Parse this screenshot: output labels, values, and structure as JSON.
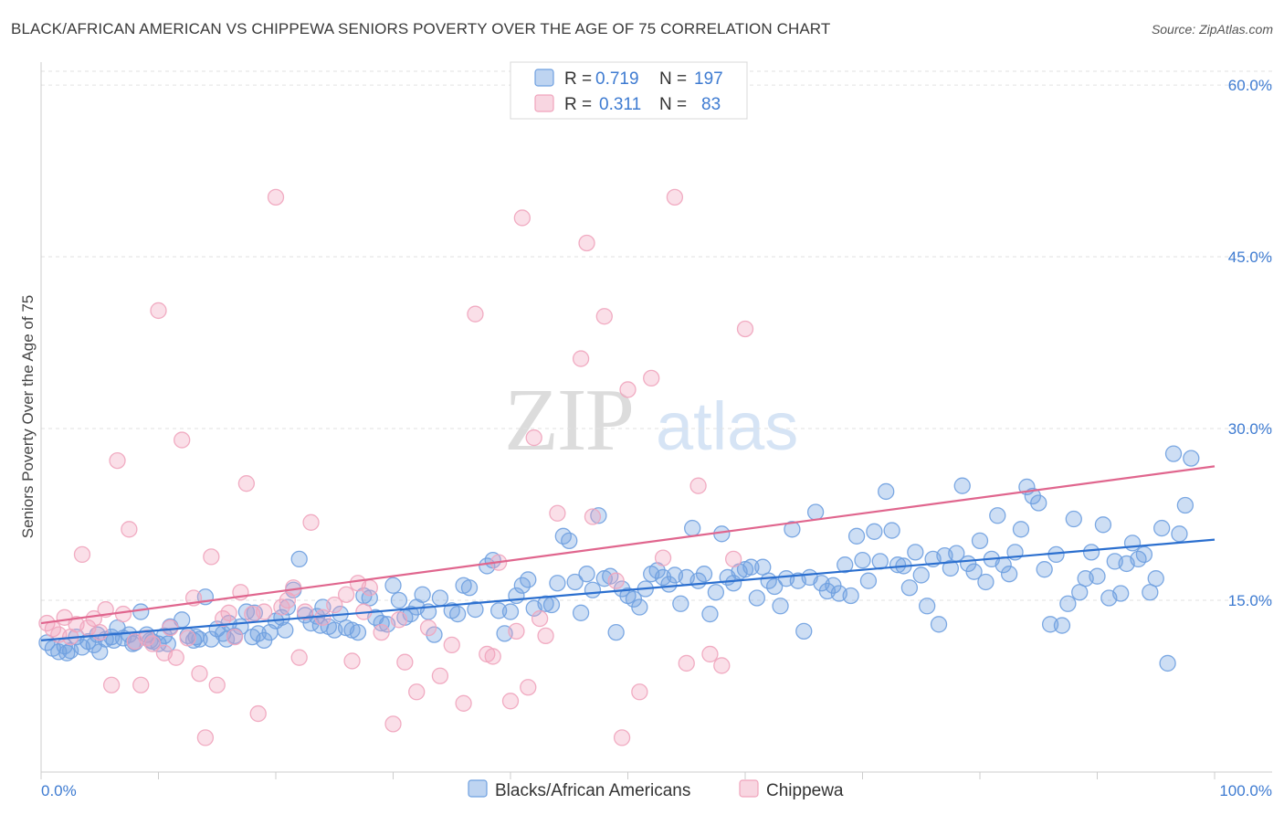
{
  "title": "BLACK/AFRICAN AMERICAN VS CHIPPEWA SENIORS POVERTY OVER THE AGE OF 75 CORRELATION CHART",
  "source": "Source: ZipAtlas.com",
  "watermark": {
    "zip": "ZIP",
    "atlas": "atlas"
  },
  "chart_data": {
    "type": "scatter",
    "xlabel": "",
    "ylabel": "Seniors Poverty Over the Age of 75",
    "xlim": [
      0,
      100
    ],
    "ylim": [
      0,
      62
    ],
    "x_tick_labels": [
      "0.0%",
      "100.0%"
    ],
    "y_ticks": [
      15,
      30,
      45,
      60
    ],
    "y_tick_labels": [
      "15.0%",
      "30.0%",
      "45.0%",
      "60.0%"
    ],
    "grid": true,
    "legend_position": "top-center",
    "series": [
      {
        "name": "Blacks/African Americans",
        "color": "#6fa0e0",
        "line_color": "#2b6fcf",
        "R": "0.719",
        "N": "197",
        "trend": [
          [
            0,
            11.5
          ],
          [
            100,
            20.3
          ]
        ],
        "points": [
          [
            0.5,
            11.3
          ],
          [
            1,
            10.8
          ],
          [
            1.5,
            10.5
          ],
          [
            2,
            11
          ],
          [
            2.5,
            10.6
          ],
          [
            3,
            11.8
          ],
          [
            3.5,
            10.9
          ],
          [
            4,
            11.4
          ],
          [
            4.5,
            11.1
          ],
          [
            5,
            10.5
          ],
          [
            5.5,
            11.6
          ],
          [
            6,
            11.8
          ],
          [
            6.5,
            12.6
          ],
          [
            7,
            11.7
          ],
          [
            7.5,
            12
          ],
          [
            8,
            11.3
          ],
          [
            8.5,
            14
          ],
          [
            9,
            12
          ],
          [
            9.5,
            11.4
          ],
          [
            10,
            11.2
          ],
          [
            10.5,
            11.9
          ],
          [
            11,
            12.7
          ],
          [
            12,
            13.3
          ],
          [
            12.5,
            11.9
          ],
          [
            13,
            11.5
          ],
          [
            13.5,
            11.6
          ],
          [
            14,
            15.3
          ],
          [
            14.5,
            11.6
          ],
          [
            15,
            12.5
          ],
          [
            15.5,
            12.1
          ],
          [
            16,
            13
          ],
          [
            16.5,
            11.9
          ],
          [
            17,
            12.7
          ],
          [
            17.5,
            14
          ],
          [
            18,
            11.8
          ],
          [
            18.5,
            12.1
          ],
          [
            19,
            11.5
          ],
          [
            19.5,
            12.2
          ],
          [
            20,
            13.2
          ],
          [
            20.5,
            13.5
          ],
          [
            21,
            14.4
          ],
          [
            21.5,
            15.9
          ],
          [
            22,
            18.6
          ],
          [
            22.5,
            13.7
          ],
          [
            23,
            13
          ],
          [
            23.5,
            13.6
          ],
          [
            24,
            14.4
          ],
          [
            24.5,
            12.7
          ],
          [
            25,
            12.4
          ],
          [
            25.5,
            13.8
          ],
          [
            26,
            12.6
          ],
          [
            26.5,
            12.4
          ],
          [
            27,
            12.2
          ],
          [
            27.5,
            15.4
          ],
          [
            28,
            15.2
          ],
          [
            28.5,
            13.5
          ],
          [
            29,
            13
          ],
          [
            29.5,
            12.9
          ],
          [
            30,
            16.3
          ],
          [
            30.5,
            15
          ],
          [
            31,
            13.5
          ],
          [
            31.5,
            13.8
          ],
          [
            32,
            14.4
          ],
          [
            32.5,
            15.5
          ],
          [
            33,
            14
          ],
          [
            33.5,
            12
          ],
          [
            34,
            15.2
          ],
          [
            35,
            14.1
          ],
          [
            35.5,
            13.8
          ],
          [
            36,
            16.3
          ],
          [
            36.5,
            16.1
          ],
          [
            37,
            14.2
          ],
          [
            38,
            18
          ],
          [
            38.5,
            18.5
          ],
          [
            39,
            14.1
          ],
          [
            39.5,
            12.1
          ],
          [
            40,
            14
          ],
          [
            40.5,
            15.4
          ],
          [
            41,
            16.3
          ],
          [
            41.5,
            16.8
          ],
          [
            42,
            14.3
          ],
          [
            43,
            14.7
          ],
          [
            43.5,
            14.6
          ],
          [
            44,
            16.5
          ],
          [
            44.5,
            20.6
          ],
          [
            45,
            20.2
          ],
          [
            45.5,
            16.6
          ],
          [
            46,
            13.9
          ],
          [
            46.5,
            17.3
          ],
          [
            47,
            15.9
          ],
          [
            47.5,
            22.4
          ],
          [
            48,
            16.9
          ],
          [
            48.5,
            17.1
          ],
          [
            49,
            12.2
          ],
          [
            49.5,
            16
          ],
          [
            50,
            15.4
          ],
          [
            50.5,
            15.1
          ],
          [
            51,
            14.4
          ],
          [
            51.5,
            16
          ],
          [
            52,
            17.3
          ],
          [
            52.5,
            17.6
          ],
          [
            53,
            17
          ],
          [
            53.5,
            16.4
          ],
          [
            54,
            17.2
          ],
          [
            54.5,
            14.7
          ],
          [
            55,
            17
          ],
          [
            55.5,
            21.3
          ],
          [
            56,
            16.7
          ],
          [
            56.5,
            17.3
          ],
          [
            57,
            13.8
          ],
          [
            57.5,
            15.7
          ],
          [
            58,
            20.8
          ],
          [
            58.5,
            17
          ],
          [
            59,
            16.5
          ],
          [
            59.5,
            17.5
          ],
          [
            60,
            17.7
          ],
          [
            60.5,
            17.9
          ],
          [
            61,
            15.2
          ],
          [
            61.5,
            17.9
          ],
          [
            62,
            16.7
          ],
          [
            62.5,
            16.2
          ],
          [
            63,
            14.5
          ],
          [
            63.5,
            16.9
          ],
          [
            64,
            21.2
          ],
          [
            64.5,
            16.7
          ],
          [
            65,
            12.3
          ],
          [
            65.5,
            17
          ],
          [
            66,
            22.7
          ],
          [
            66.5,
            16.5
          ],
          [
            67,
            15.8
          ],
          [
            67.5,
            16.3
          ],
          [
            68,
            15.6
          ],
          [
            68.5,
            18.1
          ],
          [
            69,
            15.4
          ],
          [
            69.5,
            20.6
          ],
          [
            70,
            18.5
          ],
          [
            70.5,
            16.7
          ],
          [
            71,
            21
          ],
          [
            71.5,
            18.4
          ],
          [
            72,
            24.5
          ],
          [
            72.5,
            21.1
          ],
          [
            73,
            18.1
          ],
          [
            73.5,
            18
          ],
          [
            74,
            16.1
          ],
          [
            74.5,
            19.2
          ],
          [
            75,
            17.2
          ],
          [
            75.5,
            14.5
          ],
          [
            76,
            18.6
          ],
          [
            76.5,
            12.9
          ],
          [
            77,
            18.9
          ],
          [
            77.5,
            17.8
          ],
          [
            78,
            19.1
          ],
          [
            78.5,
            25
          ],
          [
            79,
            18.2
          ],
          [
            79.5,
            17.5
          ],
          [
            80,
            20.2
          ],
          [
            80.5,
            16.6
          ],
          [
            81,
            18.6
          ],
          [
            81.5,
            22.4
          ],
          [
            82,
            18.1
          ],
          [
            82.5,
            17.3
          ],
          [
            83,
            19.2
          ],
          [
            83.5,
            21.2
          ],
          [
            84,
            24.9
          ],
          [
            84.5,
            24.1
          ],
          [
            85,
            23.5
          ],
          [
            85.5,
            17.7
          ],
          [
            86,
            12.9
          ],
          [
            86.5,
            19
          ],
          [
            87,
            12.8
          ],
          [
            87.5,
            14.7
          ],
          [
            88,
            22.1
          ],
          [
            88.5,
            15.7
          ],
          [
            89,
            16.9
          ],
          [
            89.5,
            19.2
          ],
          [
            90,
            17.1
          ],
          [
            90.5,
            21.6
          ],
          [
            91,
            15.2
          ],
          [
            91.5,
            18.4
          ],
          [
            92,
            15.6
          ],
          [
            92.5,
            18.2
          ],
          [
            93,
            20
          ],
          [
            93.5,
            18.6
          ],
          [
            94,
            19
          ],
          [
            94.5,
            15.7
          ],
          [
            95,
            16.9
          ],
          [
            95.5,
            21.3
          ],
          [
            96,
            9.5
          ],
          [
            96.5,
            27.8
          ],
          [
            97,
            20.8
          ],
          [
            97.5,
            23.3
          ],
          [
            98,
            27.4
          ],
          [
            2.2,
            10.4
          ],
          [
            4.8,
            12
          ],
          [
            6.2,
            11.5
          ],
          [
            7.8,
            11.2
          ],
          [
            9.3,
            11.5
          ],
          [
            10.8,
            11.2
          ],
          [
            13.2,
            11.8
          ],
          [
            15.8,
            11.6
          ],
          [
            18.2,
            13.9
          ],
          [
            20.8,
            12.4
          ],
          [
            23.8,
            12.8
          ]
        ]
      },
      {
        "name": "Chippewa",
        "color": "#f0a4bc",
        "line_color": "#e0668e",
        "R": "0.311",
        "N": "83",
        "trend": [
          [
            0,
            13
          ],
          [
            100,
            26.7
          ]
        ],
        "points": [
          [
            0.5,
            13
          ],
          [
            1,
            12.5
          ],
          [
            1.5,
            12
          ],
          [
            2,
            13.5
          ],
          [
            2.5,
            11.8
          ],
          [
            3,
            12.9
          ],
          [
            3.5,
            19
          ],
          [
            4,
            12.6
          ],
          [
            4.5,
            13.4
          ],
          [
            5,
            12.2
          ],
          [
            5.5,
            14.2
          ],
          [
            6,
            7.6
          ],
          [
            6.5,
            27.2
          ],
          [
            7,
            13.8
          ],
          [
            7.5,
            21.2
          ],
          [
            8,
            11.4
          ],
          [
            8.5,
            7.6
          ],
          [
            9,
            11.7
          ],
          [
            9.5,
            11.2
          ],
          [
            10,
            40.3
          ],
          [
            10.5,
            10.4
          ],
          [
            11,
            12.6
          ],
          [
            11.5,
            10
          ],
          [
            12,
            29
          ],
          [
            12.5,
            11.7
          ],
          [
            13,
            15.2
          ],
          [
            13.5,
            8.6
          ],
          [
            14,
            3
          ],
          [
            14.5,
            18.8
          ],
          [
            15,
            7.6
          ],
          [
            15.5,
            13.4
          ],
          [
            16,
            13.9
          ],
          [
            16.5,
            11.8
          ],
          [
            17,
            15.7
          ],
          [
            17.5,
            25.2
          ],
          [
            18,
            13.8
          ],
          [
            18.5,
            5.1
          ],
          [
            19,
            14
          ],
          [
            20,
            50.2
          ],
          [
            20.5,
            14.4
          ],
          [
            21,
            15
          ],
          [
            21.5,
            16.1
          ],
          [
            22,
            10
          ],
          [
            22.5,
            14
          ],
          [
            23,
            21.8
          ],
          [
            24,
            13.5
          ],
          [
            25,
            14.6
          ],
          [
            26,
            15.5
          ],
          [
            26.5,
            9.7
          ],
          [
            27,
            16.5
          ],
          [
            27.5,
            14
          ],
          [
            28,
            16.1
          ],
          [
            29,
            12.2
          ],
          [
            30,
            4.2
          ],
          [
            30.5,
            13.3
          ],
          [
            31,
            9.6
          ],
          [
            32,
            7
          ],
          [
            33,
            12.6
          ],
          [
            34,
            8.4
          ],
          [
            35,
            11.1
          ],
          [
            36,
            6
          ],
          [
            37,
            40
          ],
          [
            38,
            10.3
          ],
          [
            38.5,
            10.1
          ],
          [
            39,
            18.3
          ],
          [
            40,
            6.2
          ],
          [
            40.5,
            12.3
          ],
          [
            41,
            48.4
          ],
          [
            41.5,
            7.4
          ],
          [
            42,
            29.2
          ],
          [
            42.5,
            13.4
          ],
          [
            43,
            11.9
          ],
          [
            44,
            22.6
          ],
          [
            46,
            36.1
          ],
          [
            46.5,
            46.2
          ],
          [
            47,
            22.3
          ],
          [
            48,
            39.8
          ],
          [
            49,
            16.7
          ],
          [
            49.5,
            3
          ],
          [
            50,
            33.4
          ],
          [
            51,
            7
          ],
          [
            52,
            34.4
          ],
          [
            53,
            18.7
          ],
          [
            54,
            50.2
          ],
          [
            55,
            9.5
          ],
          [
            56,
            25
          ],
          [
            57,
            10.3
          ],
          [
            58,
            9.3
          ],
          [
            59,
            18.6
          ],
          [
            60,
            38.7
          ]
        ]
      }
    ]
  }
}
